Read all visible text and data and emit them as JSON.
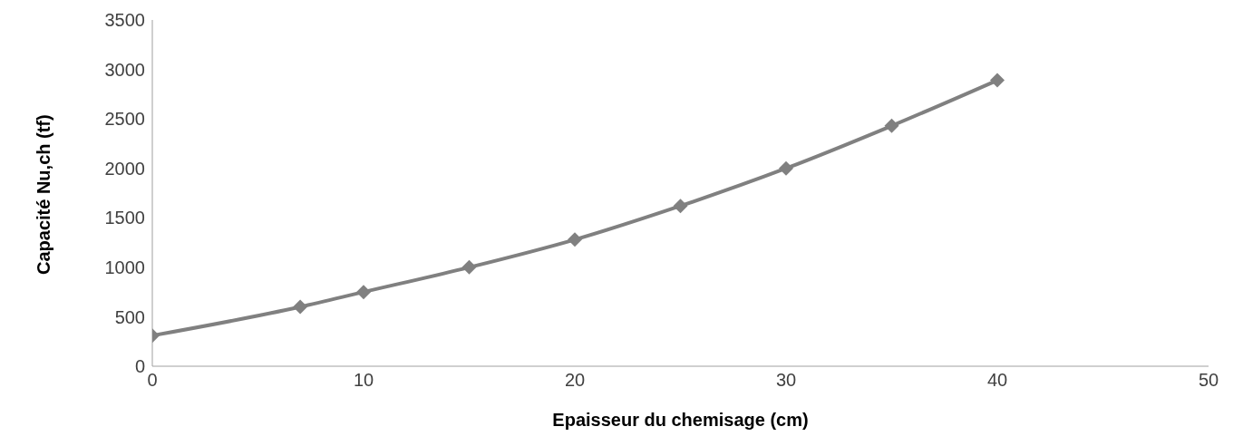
{
  "chart_data": {
    "type": "line",
    "xlabel": "Epaisseur du chemisage (cm)",
    "ylabel": "Capacité Nu,ch (tf)",
    "x": [
      0,
      7,
      10,
      15,
      20,
      25,
      30,
      35,
      40
    ],
    "series": [
      {
        "color": "#808080",
        "values": [
          310,
          600,
          750,
          1000,
          1280,
          1620,
          2000,
          2430,
          2890
        ]
      }
    ],
    "xlim": [
      0,
      50
    ],
    "xticks": [
      0,
      10,
      20,
      30,
      40,
      50
    ],
    "ylim": [
      0,
      3500
    ],
    "yticks": [
      0,
      500,
      1000,
      1500,
      2000,
      2500,
      3000,
      3500
    ],
    "grid": false,
    "legend": false,
    "marker": "diamond",
    "line_style": "solid"
  }
}
